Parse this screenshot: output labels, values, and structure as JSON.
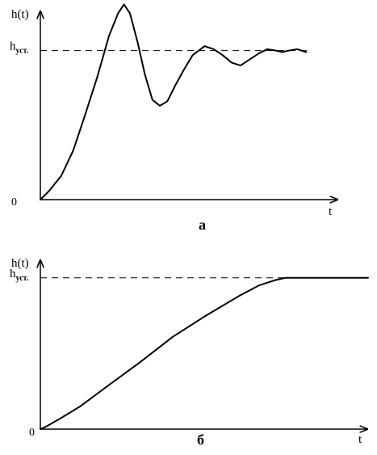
{
  "chart_data": [
    {
      "type": "line",
      "panel_label": "а",
      "ylabel": "h(t)",
      "xlabel": "t",
      "origin_label": "0",
      "steady_label_main": "h",
      "steady_label_sub": "уст.",
      "steady_value": 1.0,
      "xlim": [
        0,
        10
      ],
      "ylim": [
        0,
        1.34
      ],
      "series": [
        {
          "x": [
            0,
            0.3,
            0.7,
            1.1,
            1.5,
            1.9,
            2.3,
            2.6,
            2.8,
            3.0,
            3.25,
            3.5,
            3.75,
            4.0,
            4.25,
            4.5,
            4.8,
            5.1,
            5.5,
            5.8,
            6.1,
            6.4,
            6.7,
            7.0,
            7.3,
            7.6,
            7.9,
            8.1,
            8.3,
            8.6,
            8.75,
            8.9
          ],
          "y": [
            0,
            0.06,
            0.16,
            0.33,
            0.57,
            0.82,
            1.1,
            1.25,
            1.31,
            1.25,
            1.06,
            0.84,
            0.67,
            0.63,
            0.66,
            0.76,
            0.87,
            0.97,
            1.03,
            1.01,
            0.97,
            0.92,
            0.9,
            0.94,
            0.98,
            1.01,
            1.0,
            0.99,
            1.0,
            1.01,
            1.0,
            0.99
          ]
        }
      ]
    },
    {
      "type": "line",
      "panel_label": "б",
      "ylabel": "h(t)",
      "xlabel": "t",
      "origin_label": "0",
      "steady_label_main": "h",
      "steady_label_sub": "уст.",
      "steady_value": 1.0,
      "xlim": [
        0,
        10
      ],
      "ylim": [
        0,
        1.25
      ],
      "series": [
        {
          "x": [
            0,
            0.2,
            0.6,
            1.2,
            2.0,
            3.0,
            4.0,
            5.0,
            6.0,
            6.6,
            7.1,
            7.4,
            7.7,
            8.2,
            9.0,
            9.9
          ],
          "y": [
            0,
            0.02,
            0.07,
            0.15,
            0.28,
            0.44,
            0.61,
            0.75,
            0.88,
            0.95,
            0.985,
            1.0,
            1.0,
            1.0,
            1.0,
            1.0
          ]
        }
      ]
    }
  ]
}
